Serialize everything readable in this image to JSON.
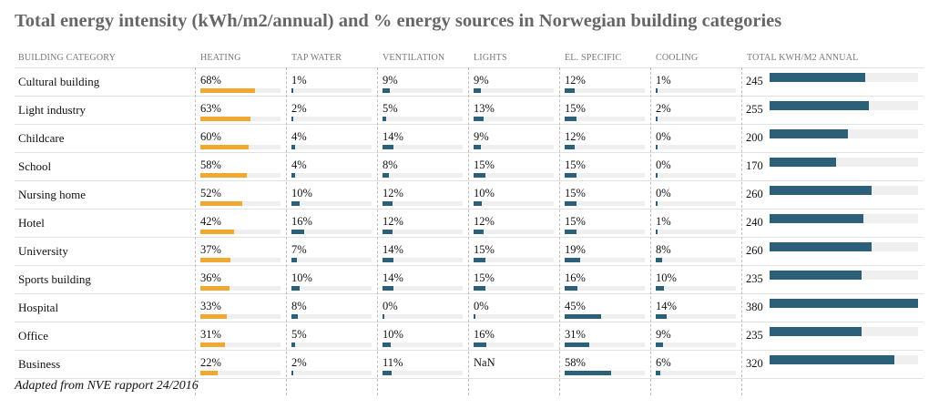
{
  "title": "Total energy intensity (kWh/m2/annual) and % energy sources in Norwegian building categories",
  "source": "Adapted from NVE rapport 24/2016",
  "colors": {
    "heating": "#f0a830",
    "other": "#2b6078",
    "track": "#efefef"
  },
  "headers": {
    "category": "BUILDING CATEGORY",
    "heating": "HEATING",
    "tap_water": "TAP WATER",
    "ventilation": "VENTILATION",
    "lights": "LIGHTS",
    "el_specific": "EL. SPECIFIC",
    "cooling": "COOLING",
    "total": "TOTAL KWH/M2 ANNUAL"
  },
  "chart_data": {
    "type": "table",
    "title": "Total energy intensity (kWh/m2/annual) and % energy sources in Norwegian building categories",
    "columns": [
      "heating",
      "tap_water",
      "ventilation",
      "lights",
      "el_specific",
      "cooling"
    ],
    "total_max": 380,
    "rows": [
      {
        "category": "Cultural building",
        "heating": "68%",
        "tap_water": "1%",
        "ventilation": "9%",
        "lights": "9%",
        "el_specific": "12%",
        "cooling": "1%",
        "total": "245"
      },
      {
        "category": "Light industry",
        "heating": "63%",
        "tap_water": "2%",
        "ventilation": "5%",
        "lights": "13%",
        "el_specific": "15%",
        "cooling": "2%",
        "total": "255"
      },
      {
        "category": "Childcare",
        "heating": "60%",
        "tap_water": "4%",
        "ventilation": "14%",
        "lights": "9%",
        "el_specific": "12%",
        "cooling": "0%",
        "total": "200"
      },
      {
        "category": "School",
        "heating": "58%",
        "tap_water": "4%",
        "ventilation": "8%",
        "lights": "15%",
        "el_specific": "15%",
        "cooling": "0%",
        "total": "170"
      },
      {
        "category": "Nursing home",
        "heating": "52%",
        "tap_water": "10%",
        "ventilation": "12%",
        "lights": "10%",
        "el_specific": "15%",
        "cooling": "0%",
        "total": "260"
      },
      {
        "category": "Hotel",
        "heating": "42%",
        "tap_water": "16%",
        "ventilation": "12%",
        "lights": "12%",
        "el_specific": "15%",
        "cooling": "1%",
        "total": "240"
      },
      {
        "category": "University",
        "heating": "37%",
        "tap_water": "7%",
        "ventilation": "14%",
        "lights": "15%",
        "el_specific": "19%",
        "cooling": "8%",
        "total": "260"
      },
      {
        "category": "Sports building",
        "heating": "36%",
        "tap_water": "10%",
        "ventilation": "14%",
        "lights": "15%",
        "el_specific": "16%",
        "cooling": "10%",
        "total": "235"
      },
      {
        "category": "Hospital",
        "heating": "33%",
        "tap_water": "8%",
        "ventilation": "0%",
        "lights": "0%",
        "el_specific": "45%",
        "cooling": "14%",
        "total": "380"
      },
      {
        "category": "Office",
        "heating": "31%",
        "tap_water": "5%",
        "ventilation": "10%",
        "lights": "16%",
        "el_specific": "31%",
        "cooling": "9%",
        "total": "235"
      },
      {
        "category": "Business",
        "heating": "22%",
        "tap_water": "2%",
        "ventilation": "11%",
        "lights": "NaN",
        "el_specific": "58%",
        "cooling": "6%",
        "total": "320"
      }
    ]
  }
}
